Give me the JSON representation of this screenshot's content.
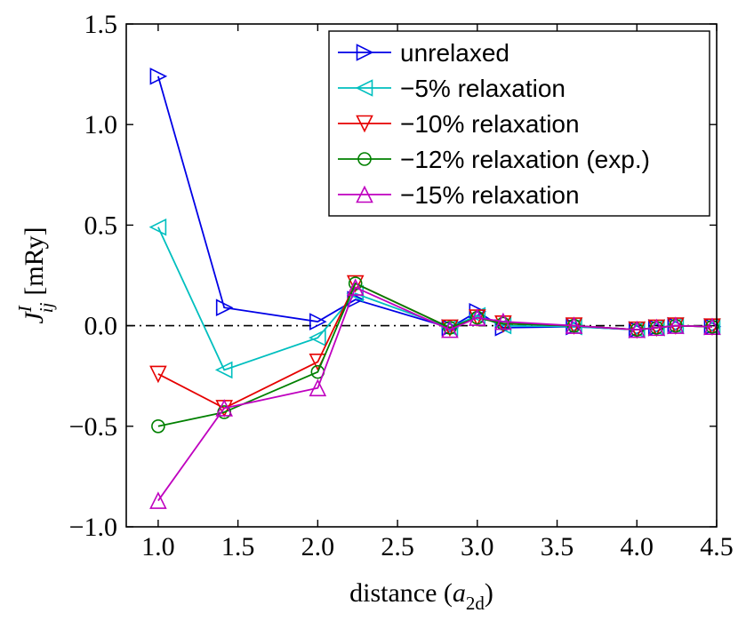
{
  "chart_data": {
    "type": "line",
    "xlabel": "distance (a2d)",
    "xlabel_parts": {
      "prefix": "distance (",
      "var": "a",
      "sub": "2d",
      "suffix": ")"
    },
    "ylabel": "J_ij^I [mRy]",
    "ylabel_parts": {
      "var": "J",
      "sup": "I",
      "sub": "ij",
      "unit": "[mRy]"
    },
    "xlim": [
      0.8,
      4.5
    ],
    "ylim": [
      -1.0,
      1.5
    ],
    "xticks": [
      1.0,
      1.5,
      2.0,
      2.5,
      3.0,
      3.5,
      4.0,
      4.5
    ],
    "xtick_labels": [
      "1.0",
      "1.5",
      "2.0",
      "2.5",
      "3.0",
      "3.5",
      "4.0",
      "4.5"
    ],
    "yticks": [
      -1.0,
      -0.5,
      0.0,
      0.5,
      1.0,
      1.5
    ],
    "ytick_labels": [
      "−1.0",
      "−0.5",
      "0.0",
      "0.5",
      "1.0",
      "1.5"
    ],
    "zero_line": {
      "y": 0,
      "style": "dash-dot"
    },
    "x": [
      1.0,
      1.414,
      2.0,
      2.236,
      2.828,
      3.0,
      3.162,
      3.606,
      4.0,
      4.123,
      4.243,
      4.472
    ],
    "series": [
      {
        "name": "unrelaxed",
        "color": "#0000e6",
        "marker": "triangle-right",
        "values": [
          1.24,
          0.09,
          0.02,
          0.13,
          -0.01,
          0.07,
          -0.01,
          -0.005,
          -0.02,
          -0.01,
          0.0,
          -0.005
        ]
      },
      {
        "name": "−5% relaxation",
        "color": "#00bfbf",
        "marker": "triangle-left",
        "values": [
          0.49,
          -0.22,
          -0.06,
          0.16,
          -0.01,
          0.05,
          0.0,
          -0.005,
          -0.02,
          -0.01,
          0.0,
          -0.005
        ]
      },
      {
        "name": "−10% relaxation",
        "color": "#e60000",
        "marker": "triangle-down",
        "values": [
          -0.24,
          -0.41,
          -0.18,
          0.21,
          -0.01,
          0.04,
          0.01,
          0.0,
          -0.02,
          -0.01,
          0.0,
          -0.005
        ]
      },
      {
        "name": "−12% relaxation (exp.)",
        "color": "#008000",
        "marker": "circle",
        "values": [
          -0.5,
          -0.43,
          -0.23,
          0.21,
          -0.01,
          0.04,
          0.01,
          0.0,
          -0.02,
          -0.01,
          0.0,
          -0.005
        ]
      },
      {
        "name": "−15% relaxation",
        "color": "#bf00bf",
        "marker": "triangle-up",
        "values": [
          -0.87,
          -0.41,
          -0.31,
          0.19,
          -0.02,
          0.04,
          0.02,
          0.0,
          -0.02,
          -0.01,
          0.0,
          -0.005
        ]
      }
    ],
    "legend_position": "top-right",
    "grid": false
  }
}
